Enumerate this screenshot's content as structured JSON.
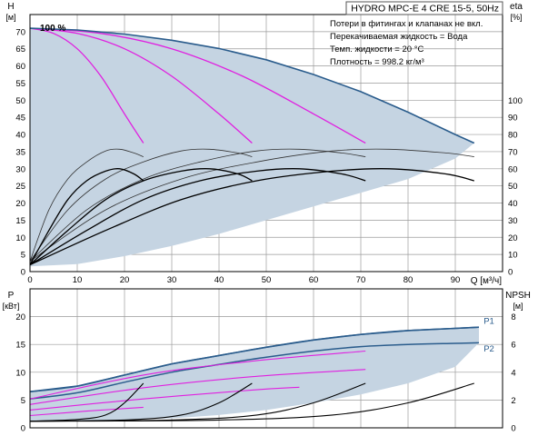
{
  "chart_data": [
    {
      "type": "line",
      "title": "HYDRO MPC-E 4 CRE 15-5, 50Hz",
      "left_axis_label_top": "H",
      "left_axis_label_unit": "[м]",
      "right_axis_label_top": "eta",
      "right_axis_label_unit": "[%]",
      "xlabel": "Q [м³/ч]",
      "xlim": [
        0,
        100
      ],
      "ylim": [
        0,
        75
      ],
      "y_ticks": [
        0,
        5,
        10,
        15,
        20,
        25,
        30,
        35,
        40,
        45,
        50,
        55,
        60,
        65,
        70
      ],
      "x_ticks": [
        0,
        10,
        20,
        30,
        40,
        50,
        60,
        70,
        80,
        90
      ],
      "eta_ticks": [
        0,
        10,
        20,
        30,
        40,
        50,
        60,
        70,
        80,
        90,
        100
      ],
      "eta_ylim": [
        0,
        150
      ],
      "grid": true,
      "speed_label": "100 %",
      "info_lines": [
        "Потери в фитингах и клапанах не вкл.",
        "Перекачиваемая жидкость = Вода",
        "Темп. жидкости = 20 °C",
        "Плотность = 998.2 кг/м³"
      ],
      "envelope": {
        "color": "#c5d4e2",
        "boundary_color": "#2a5c8c",
        "top": [
          [
            0,
            71
          ],
          [
            10,
            70.5
          ],
          [
            20,
            69.3
          ],
          [
            30,
            67.5
          ],
          [
            40,
            65.1
          ],
          [
            50,
            61.8
          ],
          [
            60,
            57.5
          ],
          [
            70,
            52.5
          ],
          [
            80,
            46.5
          ],
          [
            90,
            40
          ],
          [
            94,
            37.5
          ]
        ],
        "bottom": [
          [
            94,
            37.5
          ],
          [
            90,
            33
          ],
          [
            80,
            27
          ],
          [
            70,
            23
          ],
          [
            60,
            19
          ],
          [
            50,
            15
          ],
          [
            40,
            11
          ],
          [
            30,
            7.5
          ],
          [
            20,
            4.5
          ],
          [
            10,
            2.2
          ],
          [
            0,
            1.5
          ]
        ]
      },
      "series": [
        {
          "color": "#e020e0",
          "width": 1.3,
          "points": [
            [
              0,
              71
            ],
            [
              5,
              69.5
            ],
            [
              10,
              65
            ],
            [
              15,
              57
            ],
            [
              20,
              46
            ],
            [
              24,
              37.5
            ]
          ]
        },
        {
          "color": "#e020e0",
          "width": 1.3,
          "points": [
            [
              0,
              71
            ],
            [
              10,
              69.5
            ],
            [
              20,
              65
            ],
            [
              30,
              57
            ],
            [
              40,
              46
            ],
            [
              47,
              37.5
            ]
          ]
        },
        {
          "color": "#e020e0",
          "width": 1.3,
          "points": [
            [
              0,
              71
            ],
            [
              15,
              69.5
            ],
            [
              30,
              65
            ],
            [
              45,
              57
            ],
            [
              60,
              46
            ],
            [
              71,
              37.5
            ]
          ]
        },
        {
          "color": "#333333",
          "width": 0.8,
          "points": [
            [
              0,
              3
            ],
            [
              4,
              18
            ],
            [
              8,
              27
            ],
            [
              12,
              32
            ],
            [
              16,
              35.2
            ],
            [
              19,
              35.7
            ],
            [
              22,
              34.6
            ],
            [
              24,
              33.5
            ]
          ]
        },
        {
          "color": "#333333",
          "width": 0.8,
          "points": [
            [
              0,
              3
            ],
            [
              8,
              18
            ],
            [
              16,
              27
            ],
            [
              24,
              32
            ],
            [
              32,
              35.2
            ],
            [
              38,
              35.7
            ],
            [
              44,
              34.6
            ],
            [
              47,
              33.5
            ]
          ]
        },
        {
          "color": "#333333",
          "width": 0.8,
          "points": [
            [
              0,
              3
            ],
            [
              12,
              18
            ],
            [
              24,
              27
            ],
            [
              36,
              32
            ],
            [
              48,
              35.2
            ],
            [
              57,
              35.7
            ],
            [
              66,
              34.6
            ],
            [
              71,
              33.5
            ]
          ]
        },
        {
          "color": "#333333",
          "width": 0.8,
          "points": [
            [
              0,
              3
            ],
            [
              16,
              18
            ],
            [
              32,
              27
            ],
            [
              48,
              32
            ],
            [
              64,
              35.2
            ],
            [
              76,
              35.7
            ],
            [
              88,
              34.6
            ],
            [
              94,
              33.5
            ]
          ]
        },
        {
          "color": "#000000",
          "width": 1.3,
          "points": [
            [
              0,
              2
            ],
            [
              4,
              12
            ],
            [
              8,
              21
            ],
            [
              12,
              26.5
            ],
            [
              16,
              29.3
            ],
            [
              19,
              30
            ],
            [
              22,
              28.5
            ],
            [
              24,
              26.5
            ]
          ]
        },
        {
          "color": "#000000",
          "width": 1.3,
          "points": [
            [
              0,
              2
            ],
            [
              8,
              12
            ],
            [
              16,
              21
            ],
            [
              24,
              26.5
            ],
            [
              32,
              29.3
            ],
            [
              38,
              30
            ],
            [
              44,
              28.5
            ],
            [
              47,
              26.5
            ]
          ]
        },
        {
          "color": "#000000",
          "width": 1.3,
          "points": [
            [
              0,
              2
            ],
            [
              12,
              12
            ],
            [
              24,
              21
            ],
            [
              36,
              26.5
            ],
            [
              48,
              29.3
            ],
            [
              57,
              30
            ],
            [
              66,
              28.5
            ],
            [
              71,
              26.5
            ]
          ]
        },
        {
          "color": "#000000",
          "width": 1.3,
          "points": [
            [
              0,
              2
            ],
            [
              16,
              12
            ],
            [
              32,
              21
            ],
            [
              48,
              26.5
            ],
            [
              64,
              29.3
            ],
            [
              76,
              30
            ],
            [
              88,
              28.5
            ],
            [
              94,
              26.5
            ]
          ]
        }
      ]
    },
    {
      "type": "line",
      "left_axis_label_top": "P",
      "left_axis_label_unit": "[кВт]",
      "right_axis_label_top": "NPSH",
      "right_axis_label_unit": "[м]",
      "xlim": [
        0,
        100
      ],
      "ylim": [
        0,
        25
      ],
      "y_ticks": [
        0,
        5,
        10,
        15,
        20
      ],
      "npsh_ticks": [
        0,
        2,
        4,
        6,
        8
      ],
      "npsh_ylim": [
        0,
        10
      ],
      "grid": true,
      "envelope": {
        "color": "#c5d4e2",
        "boundary_color": "#2a5c8c",
        "top": [
          [
            0,
            6.5
          ],
          [
            10,
            7.5
          ],
          [
            20,
            9.5
          ],
          [
            30,
            11.5
          ],
          [
            40,
            13
          ],
          [
            50,
            14.5
          ],
          [
            60,
            15.8
          ],
          [
            70,
            16.8
          ],
          [
            80,
            17.5
          ],
          [
            90,
            17.9
          ],
          [
            95,
            18.1
          ]
        ],
        "bottom": [
          [
            95,
            15.3
          ],
          [
            90,
            11
          ],
          [
            80,
            8
          ],
          [
            70,
            6
          ],
          [
            60,
            4.5
          ],
          [
            50,
            3.2
          ],
          [
            40,
            2.3
          ],
          [
            30,
            1.7
          ],
          [
            20,
            1.4
          ],
          [
            10,
            1.2
          ],
          [
            0,
            1.2
          ]
        ]
      },
      "labels": [
        {
          "text": "P1",
          "x": 96,
          "y": 19.2
        },
        {
          "text": "P2",
          "x": 96,
          "y": 14.2
        }
      ],
      "series": [
        {
          "color": "#2a5c8c",
          "width": 1.5,
          "points": [
            [
              0,
              6.5
            ],
            [
              10,
              7.5
            ],
            [
              20,
              9.5
            ],
            [
              30,
              11.5
            ],
            [
              40,
              13
            ],
            [
              50,
              14.5
            ],
            [
              60,
              15.8
            ],
            [
              70,
              16.8
            ],
            [
              80,
              17.5
            ],
            [
              90,
              17.9
            ],
            [
              95,
              18.1
            ]
          ]
        },
        {
          "color": "#2a5c8c",
          "width": 1.5,
          "points": [
            [
              0,
              5.2
            ],
            [
              10,
              6.3
            ],
            [
              20,
              8.2
            ],
            [
              30,
              10
            ],
            [
              40,
              11.4
            ],
            [
              50,
              12.7
            ],
            [
              60,
              13.8
            ],
            [
              70,
              14.6
            ],
            [
              80,
              15
            ],
            [
              90,
              15.2
            ],
            [
              95,
              15.3
            ]
          ]
        },
        {
          "color": "#e020e0",
          "width": 1.1,
          "points": [
            [
              0,
              5.2
            ],
            [
              24,
              9.5
            ],
            [
              47,
              12
            ],
            [
              71,
              13.8
            ]
          ]
        },
        {
          "color": "#e020e0",
          "width": 1.1,
          "points": [
            [
              0,
              4.2
            ],
            [
              24,
              7.2
            ],
            [
              47,
              9.2
            ],
            [
              71,
              10.5
            ]
          ]
        },
        {
          "color": "#e020e0",
          "width": 1.1,
          "points": [
            [
              0,
              3.2
            ],
            [
              24,
              5.2
            ],
            [
              47,
              6.8
            ],
            [
              57,
              7.3
            ]
          ]
        },
        {
          "color": "#e020e0",
          "width": 1.1,
          "points": [
            [
              0,
              2.2
            ],
            [
              12,
              3
            ],
            [
              24,
              3.7
            ]
          ]
        },
        {
          "color": "#000000",
          "width": 1.1,
          "points": [
            [
              0,
              1.2
            ],
            [
              10,
              1.5
            ],
            [
              16,
              2.3
            ],
            [
              20,
              4.5
            ],
            [
              24,
              8
            ]
          ]
        },
        {
          "color": "#000000",
          "width": 1.1,
          "points": [
            [
              0,
              1.2
            ],
            [
              20,
              1.4
            ],
            [
              32,
              2.3
            ],
            [
              40,
              4.5
            ],
            [
              47,
              8
            ]
          ]
        },
        {
          "color": "#000000",
          "width": 1.1,
          "points": [
            [
              0,
              1.2
            ],
            [
              30,
              1.4
            ],
            [
              48,
              2.3
            ],
            [
              60,
              4.5
            ],
            [
              71,
              8
            ]
          ]
        },
        {
          "color": "#000000",
          "width": 1.1,
          "points": [
            [
              0,
              1.2
            ],
            [
              40,
              1.4
            ],
            [
              64,
              2.3
            ],
            [
              80,
              4.5
            ],
            [
              94,
              8
            ]
          ]
        }
      ]
    }
  ]
}
